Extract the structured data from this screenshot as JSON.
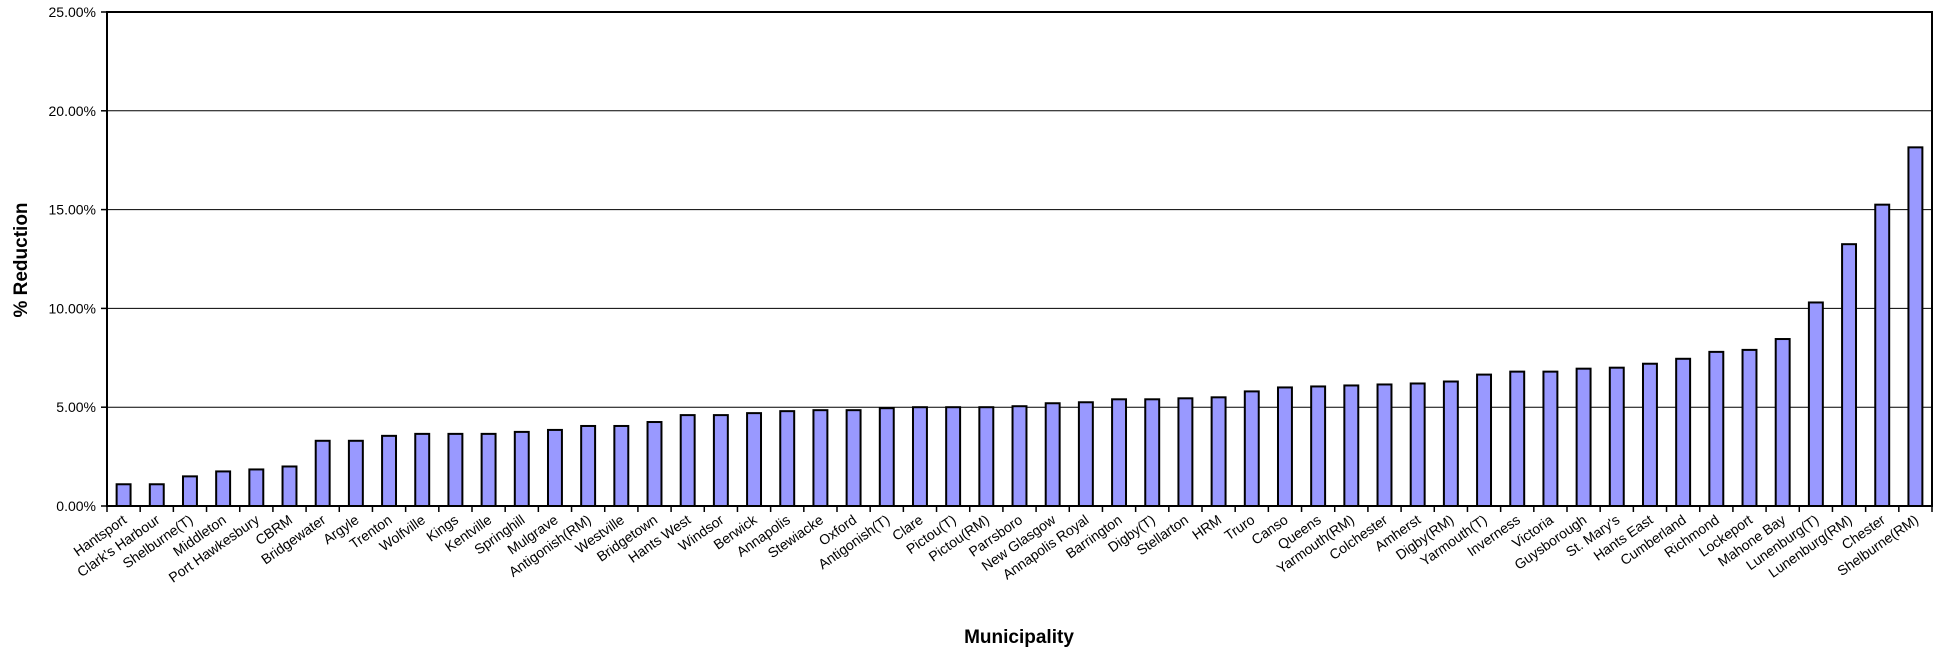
{
  "chart_data": {
    "type": "bar",
    "title": "",
    "xlabel": "Municipality",
    "ylabel": "% Reduction",
    "ylim": [
      0,
      25
    ],
    "yticks": [
      "0.00%",
      "5.00%",
      "10.00%",
      "15.00%",
      "20.00%",
      "25.00%"
    ],
    "grid": true,
    "legend": "none",
    "categories": [
      "Hantsport",
      "Clark's Harbour",
      "Shelburne(T)",
      "Middleton",
      "Port Hawkesbury",
      "CBRM",
      "Bridgewater",
      "Argyle",
      "Trenton",
      "Wolfville",
      "Kings",
      "Kentville",
      "Springhill",
      "Mulgrave",
      "Antigonish(RM)",
      "Westville",
      "Bridgetown",
      "Hants West",
      "Windsor",
      "Berwick",
      "Annapolis",
      "Stewiacke",
      "Oxford",
      "Antigonish(T)",
      "Clare",
      "Pictou(T)",
      "Pictou(RM)",
      "Parrsboro",
      "New Glasgow",
      "Annapolis Royal",
      "Barrington",
      "Digby(T)",
      "Stellarton",
      "HRM",
      "Truro",
      "Canso",
      "Queens",
      "Yarmouth(RM)",
      "Colchester",
      "Amherst",
      "Digby(RM)",
      "Yarmouth(T)",
      "Inverness",
      "Victoria",
      "Guysborough",
      "St. Mary's",
      "Hants East",
      "Cumberland",
      "Richmond",
      "Lockeport",
      "Mahone Bay",
      "Lunenburg(T)",
      "Lunenburg(RM)",
      "Chester",
      "Shelburne(RM)"
    ],
    "values": [
      1.1,
      1.1,
      1.5,
      1.75,
      1.85,
      2.0,
      3.3,
      3.3,
      3.55,
      3.65,
      3.65,
      3.65,
      3.75,
      3.85,
      4.05,
      4.05,
      4.25,
      4.6,
      4.6,
      4.7,
      4.8,
      4.85,
      4.85,
      4.95,
      5.0,
      5.0,
      5.0,
      5.05,
      5.2,
      5.25,
      5.4,
      5.4,
      5.45,
      5.5,
      5.8,
      6.0,
      6.05,
      6.1,
      6.15,
      6.2,
      6.3,
      6.65,
      6.8,
      6.8,
      6.95,
      7.0,
      7.2,
      7.45,
      7.8,
      7.9,
      8.45,
      10.3,
      13.25,
      15.25,
      18.15
    ],
    "colors": {
      "bar_fill": "#9999FF",
      "bar_stroke": "#000000",
      "grid": "#000000"
    }
  }
}
